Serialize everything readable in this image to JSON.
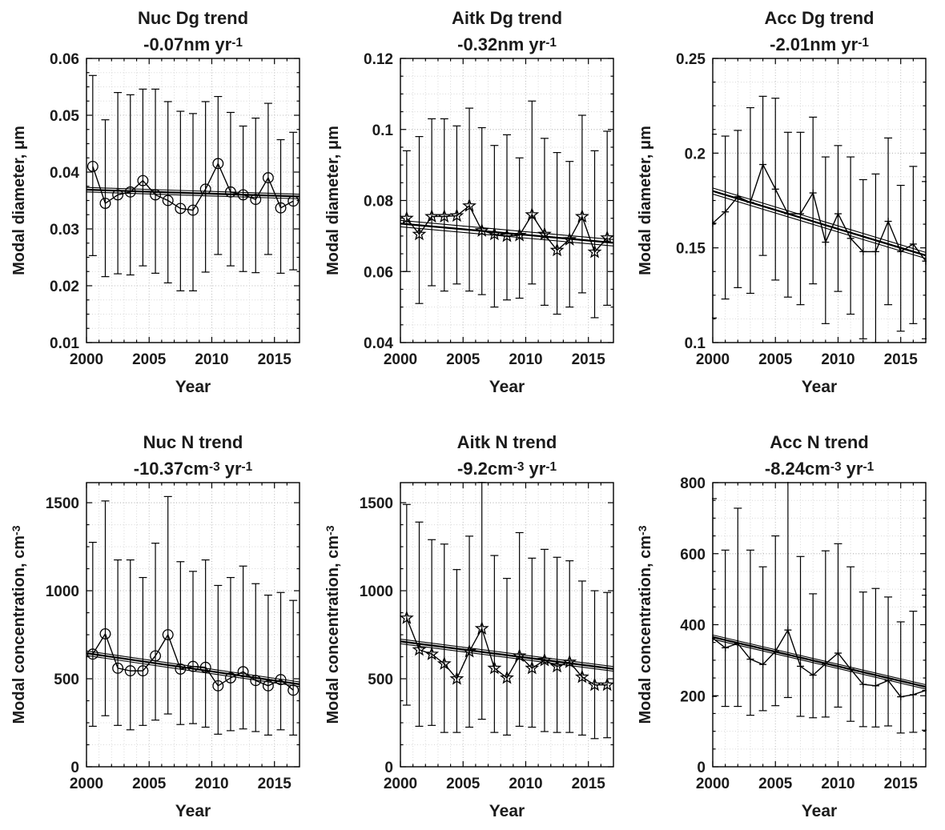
{
  "figure": {
    "background": "#ffffff",
    "text_color": "#1b1b1b",
    "line_color": "#000000",
    "grid_major_color": "#b8b8b8",
    "grid_minor_color": "#d8d8d8"
  },
  "chart_data": [
    {
      "type": "line",
      "id": "nuc-dg-trend",
      "title": "Nuc Dg trend",
      "subtitle": "-0.07nm yr^{-1}",
      "xlabel": "Year",
      "ylabel": "Modal diameter, μm",
      "marker": "circle",
      "grid": true,
      "legend_position": "none",
      "xlim": [
        2000,
        2017
      ],
      "xticks": [
        2000,
        2005,
        2010,
        2015
      ],
      "xtick_labels": [
        "2000",
        "2005",
        "2010",
        "2015"
      ],
      "x_minor_step": 1,
      "ylim": [
        0.01,
        0.06
      ],
      "yticks": [
        0.01,
        0.02,
        0.03,
        0.04,
        0.05,
        0.06
      ],
      "ytick_labels": [
        "0.01",
        "0.02",
        "0.03",
        "0.04",
        "0.05",
        "0.06"
      ],
      "y_minor_step": 0.0025,
      "x": [
        2000.5,
        2001.5,
        2002.5,
        2003.5,
        2004.5,
        2005.5,
        2006.5,
        2007.5,
        2008.5,
        2009.5,
        2010.5,
        2011.5,
        2012.5,
        2013.5,
        2014.5,
        2015.5,
        2016.5
      ],
      "y": [
        0.041,
        0.0345,
        0.036,
        0.0365,
        0.0385,
        0.036,
        0.035,
        0.0336,
        0.0333,
        0.037,
        0.0415,
        0.0365,
        0.036,
        0.0352,
        0.039,
        0.0337,
        0.0349
      ],
      "err_lo": [
        0.0253,
        0.0216,
        0.0221,
        0.0219,
        0.0235,
        0.0222,
        0.0205,
        0.0191,
        0.0191,
        0.0224,
        0.0255,
        0.0235,
        0.0225,
        0.0223,
        0.0255,
        0.0222,
        0.0228
      ],
      "err_hi": [
        0.057,
        0.0492,
        0.054,
        0.0536,
        0.0546,
        0.0546,
        0.0524,
        0.0507,
        0.0503,
        0.0524,
        0.0533,
        0.0505,
        0.0481,
        0.0495,
        0.0521,
        0.0457,
        0.047
      ],
      "trend": {
        "start": 0.0369,
        "end": 0.0357,
        "spread": 0.0004
      }
    },
    {
      "type": "line",
      "id": "aitk-dg-trend",
      "title": "Aitk Dg trend",
      "subtitle": "-0.32nm yr^{-1}",
      "xlabel": "Year",
      "ylabel": "Modal diameter, μm",
      "marker": "star",
      "grid": true,
      "legend_position": "none",
      "xlim": [
        2000,
        2017
      ],
      "xticks": [
        2000,
        2005,
        2010,
        2015
      ],
      "xtick_labels": [
        "2000",
        "2005",
        "2010",
        "2015"
      ],
      "x_minor_step": 1,
      "ylim": [
        0.04,
        0.12
      ],
      "yticks": [
        0.04,
        0.06,
        0.08,
        0.1,
        0.12
      ],
      "ytick_labels": [
        "0.04",
        "0.06",
        "0.08",
        "0.1",
        "0.12"
      ],
      "y_minor_step": 0.005,
      "x": [
        2000.5,
        2001.5,
        2002.5,
        2003.5,
        2004.5,
        2005.5,
        2006.5,
        2007.5,
        2008.5,
        2009.5,
        2010.5,
        2011.5,
        2012.5,
        2013.5,
        2014.5,
        2015.5,
        2016.5
      ],
      "y": [
        0.075,
        0.0705,
        0.0755,
        0.0755,
        0.0757,
        0.0785,
        0.0715,
        0.0705,
        0.07,
        0.0702,
        0.076,
        0.0705,
        0.066,
        0.069,
        0.0755,
        0.0655,
        0.0695
      ],
      "err_lo": [
        0.06,
        0.051,
        0.056,
        0.0545,
        0.0565,
        0.0545,
        0.0535,
        0.05,
        0.052,
        0.0525,
        0.0565,
        0.0505,
        0.048,
        0.05,
        0.054,
        0.047,
        0.0505
      ],
      "err_hi": [
        0.094,
        0.098,
        0.103,
        0.103,
        0.101,
        0.106,
        0.1005,
        0.0955,
        0.0985,
        0.092,
        0.108,
        0.0975,
        0.0935,
        0.091,
        0.104,
        0.094,
        0.0995
      ],
      "trend": {
        "start": 0.0735,
        "end": 0.0681,
        "spread": 0.0009
      }
    },
    {
      "type": "line",
      "id": "acc-dg-trend",
      "title": "Acc Dg trend",
      "subtitle": "-2.01nm yr^{-1}",
      "xlabel": "Year",
      "ylabel": "Modal diameter, μm",
      "marker": "plus",
      "grid": true,
      "legend_position": "none",
      "xlim": [
        2000,
        2017
      ],
      "xticks": [
        2000,
        2005,
        2010,
        2015
      ],
      "xtick_labels": [
        "2000",
        "2005",
        "2010",
        "2015"
      ],
      "x_minor_step": 1,
      "ylim": [
        0.1,
        0.25
      ],
      "yticks": [
        0.1,
        0.15,
        0.2,
        0.25
      ],
      "ytick_labels": [
        "0.1",
        "0.15",
        "0.2",
        "0.25"
      ],
      "y_minor_step": 0.0125,
      "x": [
        2000,
        2001,
        2002,
        2003,
        2004,
        2005,
        2006,
        2007,
        2008,
        2009,
        2010,
        2011,
        2012,
        2013,
        2014,
        2015,
        2016,
        2017
      ],
      "y": [
        0.163,
        0.169,
        0.177,
        0.174,
        0.194,
        0.181,
        0.168,
        0.168,
        0.179,
        0.153,
        0.168,
        0.155,
        0.148,
        0.148,
        0.164,
        0.148,
        0.152,
        0.143
      ],
      "err_lo": [
        0.113,
        0.123,
        0.129,
        0.126,
        0.146,
        0.133,
        0.124,
        0.12,
        0.131,
        0.11,
        0.127,
        0.115,
        0.102,
        0.1,
        0.12,
        0.106,
        0.11,
        0.102
      ],
      "err_hi": [
        0.21,
        0.209,
        0.212,
        0.224,
        0.23,
        0.229,
        0.211,
        0.211,
        0.219,
        0.198,
        0.204,
        0.198,
        0.186,
        0.189,
        0.208,
        0.183,
        0.193,
        0.185
      ],
      "trend": {
        "start": 0.18,
        "end": 0.146,
        "spread": 0.0016
      }
    },
    {
      "type": "line",
      "id": "nuc-n-trend",
      "title": "Nuc N trend",
      "subtitle": "-10.37cm^{-3} yr^{-1}",
      "xlabel": "Year",
      "ylabel": "Modal concentration, cm^{-3}",
      "marker": "circle",
      "grid": true,
      "legend_position": "none",
      "xlim": [
        2000,
        2017
      ],
      "xticks": [
        2000,
        2005,
        2010,
        2015
      ],
      "xtick_labels": [
        "2000",
        "2005",
        "2010",
        "2015"
      ],
      "x_minor_step": 1,
      "ylim": [
        0,
        1614
      ],
      "yticks": [
        0,
        500,
        1000,
        1500
      ],
      "ytick_labels": [
        "0",
        "500",
        "1000",
        "1500"
      ],
      "y_minor_step": 125,
      "x": [
        2000.5,
        2001.5,
        2002.5,
        2003.5,
        2004.5,
        2005.5,
        2006.5,
        2007.5,
        2008.5,
        2009.5,
        2010.5,
        2011.5,
        2012.5,
        2013.5,
        2014.5,
        2015.5,
        2016.5
      ],
      "y": [
        640,
        755,
        560,
        545,
        545,
        630,
        750,
        555,
        570,
        565,
        460,
        505,
        540,
        490,
        460,
        495,
        435
      ],
      "err_lo": [
        230,
        290,
        235,
        210,
        235,
        265,
        300,
        240,
        245,
        225,
        185,
        205,
        215,
        200,
        180,
        210,
        180
      ],
      "err_hi": [
        1275,
        1510,
        1175,
        1175,
        1075,
        1270,
        1535,
        1165,
        1110,
        1175,
        1030,
        1075,
        1140,
        1040,
        975,
        990,
        945
      ],
      "trend": {
        "start": 645,
        "end": 469,
        "spread": 13
      }
    },
    {
      "type": "line",
      "id": "aitk-n-trend",
      "title": "Aitk N trend",
      "subtitle": "-9.2cm^{-3} yr^{-1}",
      "xlabel": "Year",
      "ylabel": "Modal concentration, cm^{-3}",
      "marker": "star",
      "grid": true,
      "legend_position": "none",
      "xlim": [
        2000,
        2017
      ],
      "xticks": [
        2000,
        2005,
        2010,
        2015
      ],
      "xtick_labels": [
        "2000",
        "2005",
        "2010",
        "2015"
      ],
      "x_minor_step": 1,
      "ylim": [
        0,
        1614
      ],
      "yticks": [
        0,
        500,
        1000,
        1500
      ],
      "ytick_labels": [
        "0",
        "500",
        "1000",
        "1500"
      ],
      "y_minor_step": 125,
      "x": [
        2000.5,
        2001.5,
        2002.5,
        2003.5,
        2004.5,
        2005.5,
        2006.5,
        2007.5,
        2008.5,
        2009.5,
        2010.5,
        2011.5,
        2012.5,
        2013.5,
        2014.5,
        2015.5,
        2016.5
      ],
      "y": [
        845,
        665,
        640,
        585,
        500,
        655,
        785,
        560,
        505,
        630,
        560,
        605,
        570,
        595,
        510,
        465,
        465
      ],
      "err_lo": [
        350,
        230,
        235,
        195,
        195,
        225,
        270,
        195,
        180,
        230,
        225,
        200,
        195,
        195,
        180,
        160,
        165
      ],
      "err_hi": [
        1490,
        1390,
        1290,
        1265,
        1120,
        1310,
        1620,
        1200,
        1070,
        1330,
        1185,
        1235,
        1190,
        1170,
        1055,
        1000,
        990
      ],
      "trend": {
        "start": 712,
        "end": 556,
        "spread": 13
      }
    },
    {
      "type": "line",
      "id": "acc-n-trend",
      "title": "Acc N trend",
      "subtitle": "-8.24cm^{-3} yr^{-1}",
      "xlabel": "Year",
      "ylabel": "Modal concentration, cm^{-3}",
      "marker": "plus",
      "grid": true,
      "legend_position": "none",
      "xlim": [
        2000,
        2017
      ],
      "xticks": [
        2000,
        2005,
        2010,
        2015
      ],
      "xtick_labels": [
        "2000",
        "2005",
        "2010",
        "2015"
      ],
      "x_minor_step": 1,
      "ylim": [
        0,
        800
      ],
      "yticks": [
        0,
        200,
        400,
        600,
        800
      ],
      "ytick_labels": [
        "0",
        "200",
        "400",
        "600",
        "800"
      ],
      "y_minor_step": 50,
      "x": [
        2000,
        2001,
        2002,
        2003,
        2004,
        2005,
        2006,
        2007,
        2008,
        2009,
        2010,
        2011,
        2012,
        2013,
        2014,
        2015,
        2016,
        2017
      ],
      "y": [
        362,
        335,
        347,
        303,
        288,
        325,
        385,
        283,
        258,
        290,
        320,
        275,
        232,
        228,
        243,
        197,
        203,
        215
      ],
      "err_lo": [
        198,
        170,
        170,
        145,
        158,
        172,
        195,
        142,
        138,
        140,
        168,
        128,
        113,
        112,
        115,
        95,
        97,
        103
      ],
      "err_hi": [
        755,
        610,
        728,
        610,
        563,
        650,
        810,
        592,
        487,
        608,
        628,
        563,
        492,
        502,
        478,
        408,
        438,
        483
      ],
      "trend": {
        "start": 365,
        "end": 225,
        "spread": 6
      }
    }
  ]
}
